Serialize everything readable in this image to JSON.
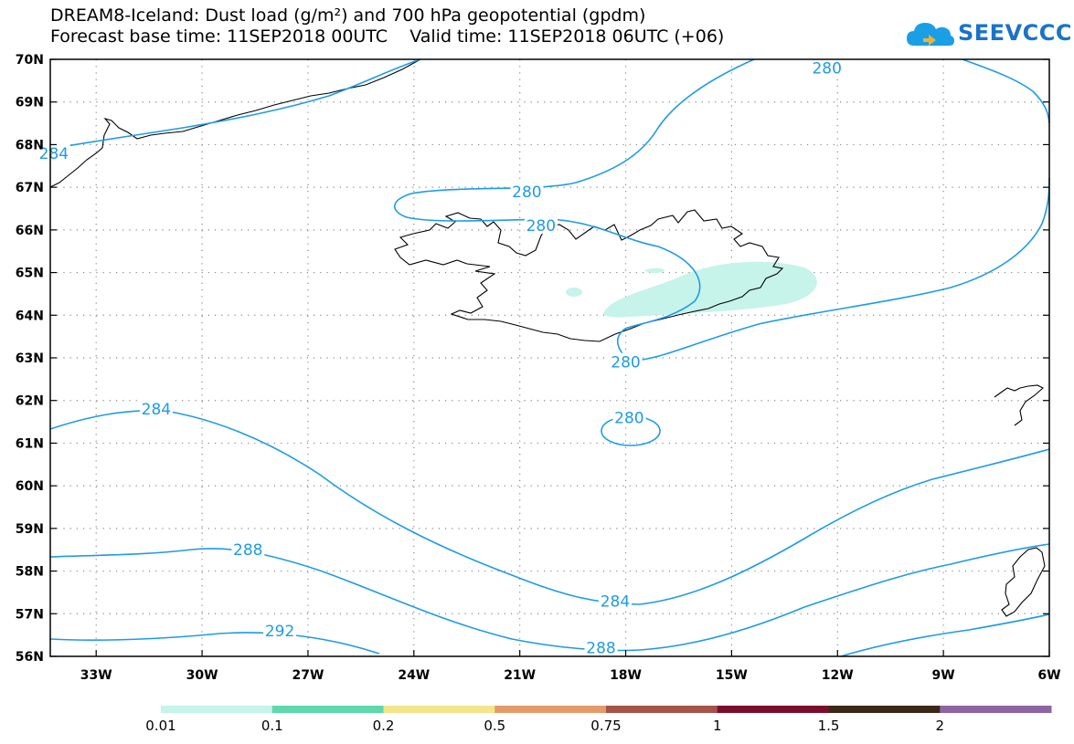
{
  "title": {
    "line1": "DREAM8-Iceland: Dust load (g/m²) and 700 hPa geopotential (gpdm)",
    "line2": "Forecast base time: 11SEP2018 00UTC    Valid time: 11SEP2018 06UTC (+06)"
  },
  "logo": {
    "text": "SEEVCCC",
    "icon": "cloud-icon",
    "color": "#1a73c8"
  },
  "axes": {
    "lat_labels": [
      "70N",
      "69N",
      "68N",
      "67N",
      "66N",
      "65N",
      "64N",
      "63N",
      "62N",
      "61N",
      "60N",
      "59N",
      "58N",
      "57N",
      "56N"
    ],
    "lon_labels": [
      "33W",
      "30W",
      "27W",
      "24W",
      "21W",
      "18W",
      "15W",
      "12W",
      "9W",
      "6W"
    ],
    "lat_range": [
      56,
      70
    ],
    "lon_range": [
      -34.3,
      -6
    ],
    "grid": "dotted"
  },
  "contours": {
    "color": "#1e9be6",
    "labels": [
      {
        "text": "280",
        "lon": -12.3,
        "lat": 69.8
      },
      {
        "text": "284",
        "lon": -34.2,
        "lat": 67.8
      },
      {
        "text": "280",
        "lon": -20.8,
        "lat": 66.9
      },
      {
        "text": "280",
        "lon": -20.4,
        "lat": 66.1
      },
      {
        "text": "280",
        "lon": -18.0,
        "lat": 62.9
      },
      {
        "text": "284",
        "lon": -31.3,
        "lat": 61.8
      },
      {
        "text": "280",
        "lon": -17.9,
        "lat": 61.6
      },
      {
        "text": "288",
        "lon": -28.7,
        "lat": 58.5
      },
      {
        "text": "284",
        "lon": -18.3,
        "lat": 57.3
      },
      {
        "text": "292",
        "lon": -27.8,
        "lat": 56.6
      },
      {
        "text": "288",
        "lon": -18.7,
        "lat": 56.2
      }
    ]
  },
  "legend": {
    "colors": [
      "#c6f3ea",
      "#5ed8ad",
      "#f3e58a",
      "#e59a6c",
      "#a65349",
      "#7d0e2b",
      "#3e2717",
      "#8e64a3"
    ],
    "labels": [
      "0.01",
      "0.1",
      "0.2",
      "0.5",
      "0.75",
      "1",
      "1.5",
      "2"
    ]
  }
}
